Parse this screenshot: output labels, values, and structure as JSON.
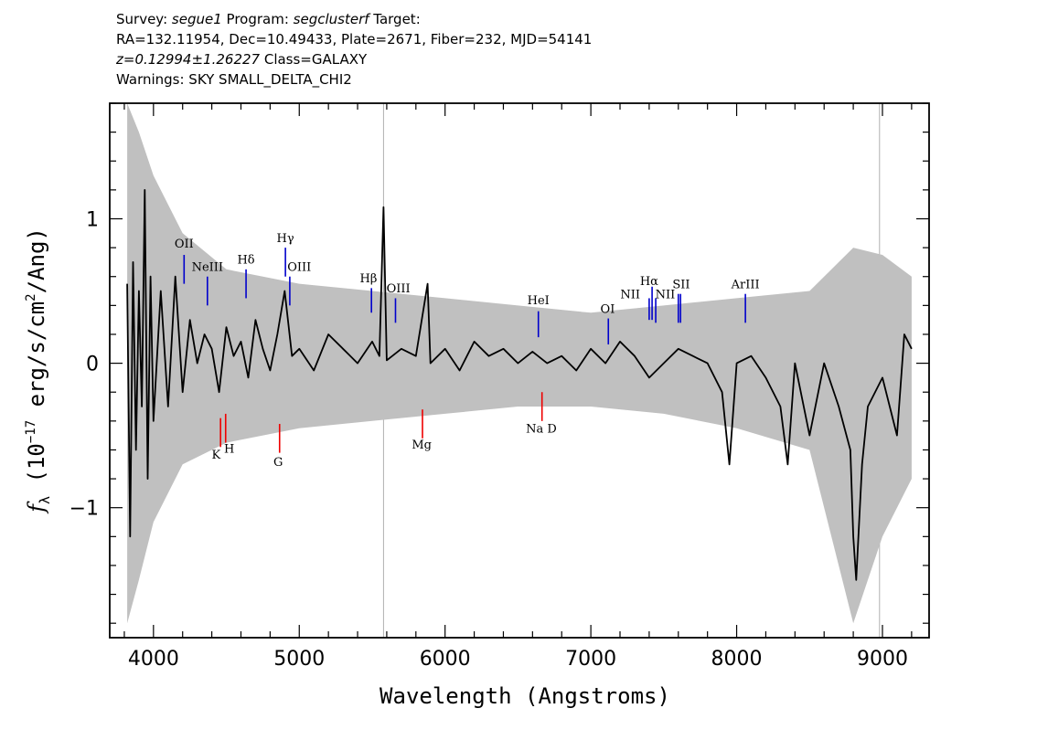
{
  "header": {
    "line1": {
      "survey_label": "Survey: ",
      "survey": "segue1",
      "program_label": " Program: ",
      "program": "segclusterf",
      "target_label": " Target:"
    },
    "line2": "RA=132.11954, Dec=10.49433, Plate=2671, Fiber=232, MJD=54141",
    "line3": {
      "redshift": "z=0.12994±1.26227",
      "class_label": " Class=GALAXY"
    },
    "line4": "Warnings: SKY SMALL_DELTA_CHI2"
  },
  "colors": {
    "flux": "#000000",
    "error": "#c0c0c0",
    "emission": "#0000cc",
    "absorption": "#ee0000",
    "sky_line": "#b0b0b0"
  },
  "chart_data": {
    "type": "line",
    "xlabel": "Wavelength (Angstroms)",
    "ylabel_parts": {
      "f": "f",
      "sub": "λ",
      "a": " (10",
      "exp": "−17",
      "b": " erg/s/cm",
      "exp2": "2",
      "c": "/Ang)"
    },
    "xlim": [
      3700,
      9320
    ],
    "ylim": [
      -1.9,
      1.8
    ],
    "x_ticks": [
      {
        "value": 4000,
        "label": "4000"
      },
      {
        "value": 5000,
        "label": "5000"
      },
      {
        "value": 6000,
        "label": "6000"
      },
      {
        "value": 7000,
        "label": "7000"
      },
      {
        "value": 8000,
        "label": "8000"
      },
      {
        "value": 9000,
        "label": "9000"
      }
    ],
    "y_ticks": [
      {
        "value": -1,
        "label": "−1"
      },
      {
        "value": 0,
        "label": "0"
      },
      {
        "value": 1,
        "label": "1"
      }
    ],
    "sky_lines": [
      5578,
      8980
    ],
    "series": [
      {
        "role": "flux",
        "x": [
          3820,
          3840,
          3860,
          3880,
          3900,
          3920,
          3940,
          3960,
          3980,
          4000,
          4050,
          4100,
          4150,
          4200,
          4250,
          4300,
          4350,
          4400,
          4450,
          4500,
          4550,
          4600,
          4650,
          4700,
          4750,
          4800,
          4850,
          4900,
          4950,
          5000,
          5100,
          5200,
          5300,
          5400,
          5500,
          5550,
          5578,
          5600,
          5700,
          5800,
          5880,
          5900,
          6000,
          6100,
          6200,
          6300,
          6400,
          6500,
          6600,
          6700,
          6800,
          6900,
          7000,
          7100,
          7200,
          7300,
          7400,
          7500,
          7600,
          7700,
          7800,
          7900,
          7950,
          8000,
          8100,
          8200,
          8300,
          8350,
          8400,
          8500,
          8600,
          8700,
          8780,
          8800,
          8820,
          8860,
          8900,
          9000,
          9100,
          9150,
          9200
        ],
        "y": [
          0.55,
          -1.2,
          0.7,
          -0.6,
          0.5,
          -0.3,
          1.2,
          -0.8,
          0.6,
          -0.4,
          0.5,
          -0.3,
          0.6,
          -0.2,
          0.3,
          0.0,
          0.2,
          0.1,
          -0.2,
          0.25,
          0.05,
          0.15,
          -0.1,
          0.3,
          0.1,
          -0.05,
          0.2,
          0.5,
          0.05,
          0.1,
          -0.05,
          0.2,
          0.1,
          0.0,
          0.15,
          0.05,
          1.08,
          0.02,
          0.1,
          0.05,
          0.55,
          0.0,
          0.1,
          -0.05,
          0.15,
          0.05,
          0.1,
          0.0,
          0.08,
          0.0,
          0.05,
          -0.05,
          0.1,
          0.0,
          0.15,
          0.05,
          -0.1,
          0.0,
          0.1,
          0.05,
          0.0,
          -0.2,
          -0.7,
          0.0,
          0.05,
          -0.1,
          -0.3,
          -0.7,
          0.0,
          -0.5,
          0.0,
          -0.3,
          -0.6,
          -1.2,
          -1.5,
          -0.7,
          -0.3,
          -0.1,
          -0.5,
          0.2,
          0.1
        ]
      },
      {
        "role": "error_envelope",
        "x": [
          3820,
          3900,
          4000,
          4200,
          4500,
          5000,
          5500,
          6000,
          6500,
          7000,
          7500,
          8000,
          8500,
          8800,
          9000,
          9200
        ],
        "y_upper": [
          1.8,
          1.6,
          1.3,
          0.9,
          0.65,
          0.55,
          0.5,
          0.45,
          0.4,
          0.35,
          0.4,
          0.45,
          0.5,
          0.8,
          0.75,
          0.6
        ],
        "y_lower": [
          -1.8,
          -1.5,
          -1.1,
          -0.7,
          -0.55,
          -0.45,
          -0.4,
          -0.35,
          -0.3,
          -0.3,
          -0.35,
          -0.45,
          -0.6,
          -1.8,
          -1.2,
          -0.8
        ]
      }
    ],
    "emission_lines": [
      {
        "label": "OII",
        "x": 4210,
        "y_bot": 0.55,
        "y_top": 0.75
      },
      {
        "label": "NeIII",
        "x": 4370,
        "y_bot": 0.4,
        "y_top": 0.6
      },
      {
        "label": "Hδ",
        "x": 4635,
        "y_bot": 0.45,
        "y_top": 0.65
      },
      {
        "label": "Hγ",
        "x": 4905,
        "y_bot": 0.6,
        "y_top": 0.8
      },
      {
        "label": "OIII",
        "x": 4935,
        "y_bot": 0.4,
        "y_top": 0.6
      },
      {
        "label": "Hβ",
        "x": 5495,
        "y_bot": 0.35,
        "y_top": 0.52
      },
      {
        "label": "OIII",
        "x": 5660,
        "y_bot": 0.28,
        "y_top": 0.45
      },
      {
        "label": "HeI",
        "x": 6640,
        "y_bot": 0.18,
        "y_top": 0.36
      },
      {
        "label": "OI",
        "x": 7120,
        "y_bot": 0.13,
        "y_top": 0.31
      },
      {
        "label": "NII",
        "x": 7400,
        "y_bot": 0.3,
        "y_top": 0.45
      },
      {
        "label": "Hα",
        "x": 7420,
        "y_bot": 0.3,
        "y_top": 0.53
      },
      {
        "label": "NII",
        "x": 7445,
        "y_bot": 0.28,
        "y_top": 0.45
      },
      {
        "label": "SII",
        "x": 7600,
        "y_bot": 0.28,
        "y_top": 0.48
      },
      {
        "label": "SII",
        "x": 7615,
        "y_bot": 0.28,
        "y_top": 0.48
      },
      {
        "label": "ArIII",
        "x": 8060,
        "y_bot": 0.28,
        "y_top": 0.48
      }
    ],
    "emission_label_text": [
      {
        "text": "OII",
        "x": 4210,
        "y": 0.8
      },
      {
        "text": "NeIII",
        "x": 4370,
        "y": 0.64
      },
      {
        "text": "Hδ",
        "x": 4635,
        "y": 0.69
      },
      {
        "text": "Hγ",
        "x": 4905,
        "y": 0.84
      },
      {
        "text": "OIII",
        "x": 5000,
        "y": 0.64
      },
      {
        "text": "Hβ",
        "x": 5475,
        "y": 0.56
      },
      {
        "text": "OIII",
        "x": 5680,
        "y": 0.49
      },
      {
        "text": "HeI",
        "x": 6640,
        "y": 0.41
      },
      {
        "text": "OI",
        "x": 7115,
        "y": 0.35
      },
      {
        "text": "NII",
        "x": 7270,
        "y": 0.45
      },
      {
        "text": "Hα",
        "x": 7400,
        "y": 0.54
      },
      {
        "text": "NII",
        "x": 7510,
        "y": 0.45
      },
      {
        "text": "SII",
        "x": 7620,
        "y": 0.52
      },
      {
        "text": "ArIII",
        "x": 8060,
        "y": 0.52
      }
    ],
    "absorption_lines": [
      {
        "label": "K",
        "x": 4460,
        "y_bot": -0.58,
        "y_top": -0.38
      },
      {
        "label": "H",
        "x": 4495,
        "y_bot": -0.55,
        "y_top": -0.35
      },
      {
        "label": "G",
        "x": 4865,
        "y_bot": -0.62,
        "y_top": -0.42
      },
      {
        "label": "Mg",
        "x": 5845,
        "y_bot": -0.52,
        "y_top": -0.32
      },
      {
        "label": "Na D",
        "x": 6665,
        "y_bot": -0.4,
        "y_top": -0.2
      }
    ],
    "absorption_label_text": [
      {
        "text": "K",
        "x": 4430,
        "y": -0.66
      },
      {
        "text": "H",
        "x": 4520,
        "y": -0.62
      },
      {
        "text": "G",
        "x": 4855,
        "y": -0.71
      },
      {
        "text": "Mg",
        "x": 5840,
        "y": -0.59
      },
      {
        "text": "Na D",
        "x": 6660,
        "y": -0.48
      }
    ]
  }
}
